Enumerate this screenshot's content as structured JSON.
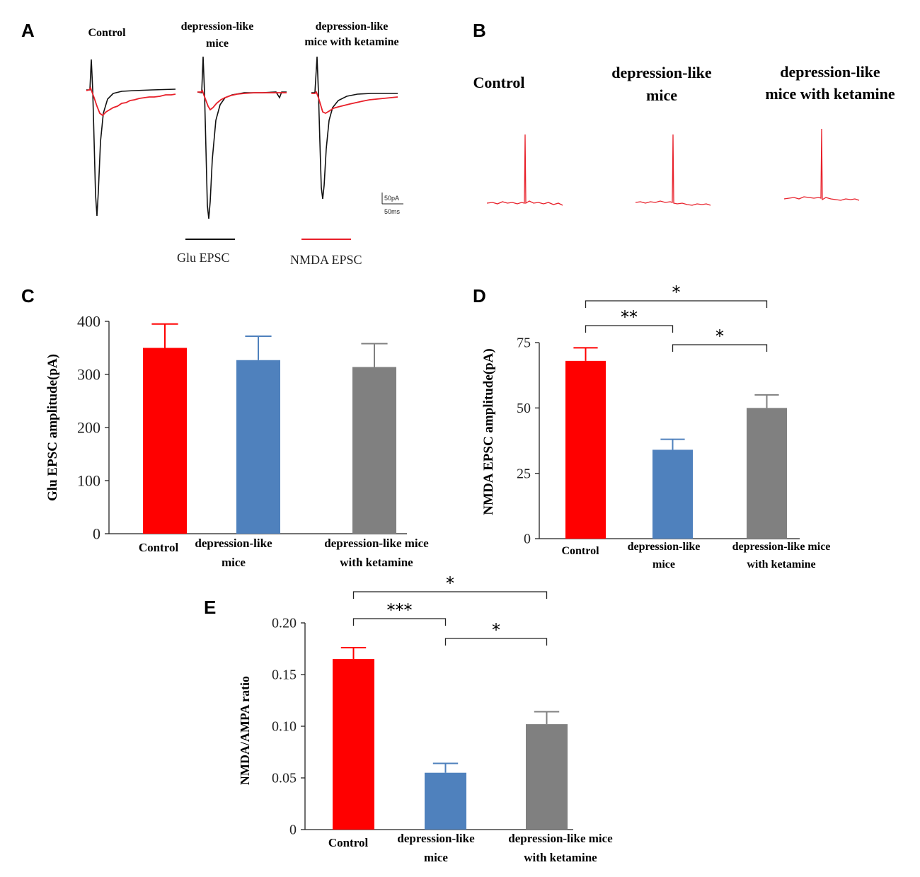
{
  "panels": {
    "a": {
      "letter": "A",
      "conditions": [
        {
          "line1": "Control",
          "line2": ""
        },
        {
          "line1": "depression-like",
          "line2": "mice"
        },
        {
          "line1": "depression-like",
          "line2": "mice with ketamine"
        }
      ],
      "scale": {
        "current": "50pA",
        "time": "50ms"
      },
      "legend": [
        {
          "label": "Glu EPSC",
          "color": "#111111"
        },
        {
          "label": "NMDA EPSC",
          "color": "#e8202a"
        }
      ]
    },
    "b": {
      "letter": "B",
      "conditions": [
        {
          "line1": "Control",
          "line2": ""
        },
        {
          "line1": "depression-like",
          "line2": "mice"
        },
        {
          "line1": "depression-like",
          "line2": "mice with ketamine"
        }
      ]
    }
  },
  "colors": {
    "control": "#ff0000",
    "depression": "#4f81bd",
    "ketamine": "#808080",
    "trace_black": "#111111",
    "trace_red": "#e8202a"
  },
  "chart_data": [
    {
      "panel": "C",
      "type": "bar",
      "ylabel": "Glu EPSC amplitude(pA)",
      "categories": [
        {
          "line1": "Control",
          "line2": ""
        },
        {
          "line1": "depression-like",
          "line2": "mice"
        },
        {
          "line1": "depression-like mice",
          "line2": "with ketamine"
        }
      ],
      "values": [
        350,
        327,
        314
      ],
      "errors": [
        45,
        45,
        44
      ],
      "ylim": [
        0,
        400
      ],
      "yticks": [
        "0",
        "100",
        "200",
        "300",
        "400"
      ],
      "significance": []
    },
    {
      "panel": "D",
      "type": "bar",
      "ylabel": "NMDA EPSC amplitude(pA)",
      "categories": [
        {
          "line1": "Control",
          "line2": ""
        },
        {
          "line1": "depression-like",
          "line2": "mice"
        },
        {
          "line1": "depression-like mice",
          "line2": "with ketamine"
        }
      ],
      "values": [
        68,
        34,
        50
      ],
      "errors": [
        5,
        4,
        5
      ],
      "ylim": [
        0,
        75
      ],
      "yticks": [
        "0",
        "25",
        "50",
        "75"
      ],
      "significance": [
        {
          "from": 0,
          "to": 2,
          "label": "*"
        },
        {
          "from": 0,
          "to": 1,
          "label": "**"
        },
        {
          "from": 1,
          "to": 2,
          "label": "*"
        }
      ]
    },
    {
      "panel": "E",
      "type": "bar",
      "ylabel": "NMDA/AMPA ratio",
      "categories": [
        {
          "line1": "Control",
          "line2": ""
        },
        {
          "line1": "depression-like",
          "line2": "mice"
        },
        {
          "line1": "depression-like mice",
          "line2": "with ketamine"
        }
      ],
      "values": [
        0.165,
        0.055,
        0.102
      ],
      "errors": [
        0.011,
        0.009,
        0.012
      ],
      "ylim": [
        0,
        0.2
      ],
      "yticks": [
        "0",
        "0.05",
        "0.10",
        "0.15",
        "0.20"
      ],
      "significance": [
        {
          "from": 0,
          "to": 2,
          "label": "*"
        },
        {
          "from": 0,
          "to": 1,
          "label": "***"
        },
        {
          "from": 1,
          "to": 2,
          "label": "*"
        }
      ]
    }
  ]
}
